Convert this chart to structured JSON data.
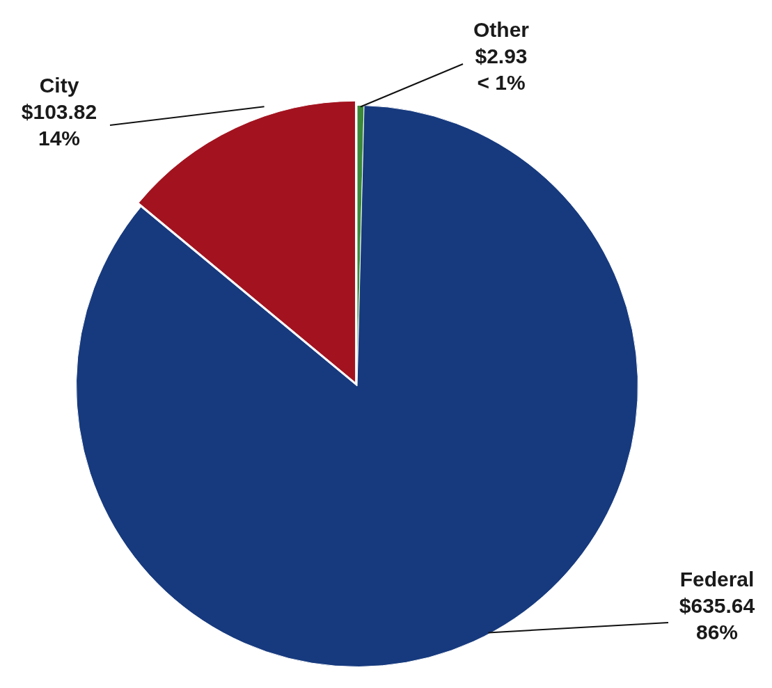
{
  "chart_data": {
    "type": "pie",
    "categories": [
      "Other",
      "Federal",
      "City"
    ],
    "values": [
      2.93,
      635.64,
      103.82
    ],
    "colors": [
      "#3b8a3a",
      "#173a7e",
      "#a3131f"
    ],
    "value_labels": [
      "$2.93\n< 1%",
      "$635.64\n86%",
      "$103.82\n14%"
    ],
    "legend": false
  }
}
